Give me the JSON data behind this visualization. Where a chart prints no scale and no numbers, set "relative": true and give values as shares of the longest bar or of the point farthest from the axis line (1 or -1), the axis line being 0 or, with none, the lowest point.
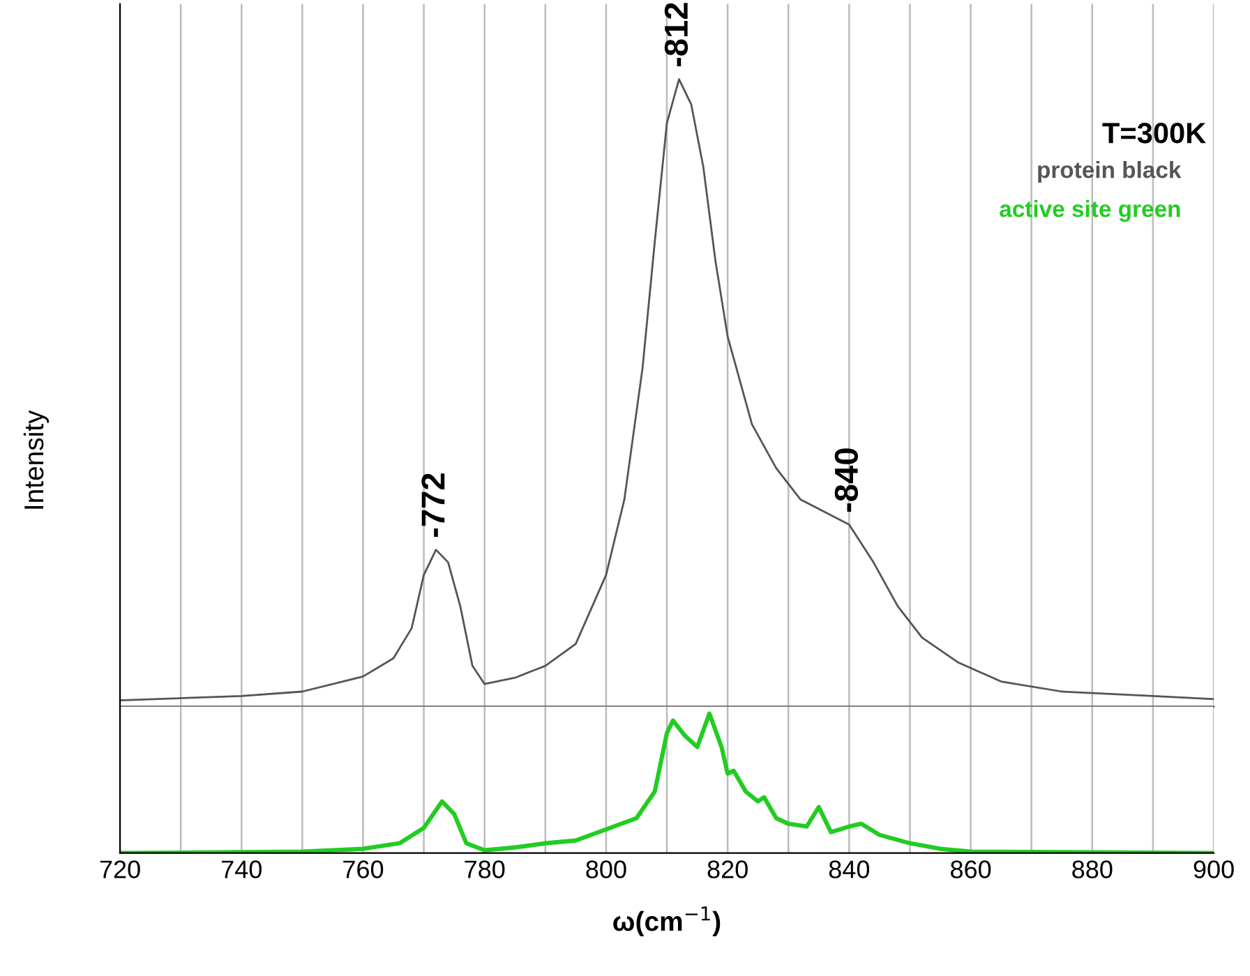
{
  "chart_data": [
    {
      "type": "line",
      "relative": true,
      "ylabel": "Intensity",
      "grid": "x",
      "tick_labels": false,
      "legend": "top right",
      "xlim": [
        720,
        900
      ],
      "xticks": [
        720,
        {
          "value": 730,
          "label": null
        },
        740,
        {
          "value": 750,
          "label": null
        },
        760,
        {
          "value": 770,
          "label": null
        },
        780,
        {
          "value": 790,
          "label": null
        },
        800,
        {
          "value": 810,
          "label": null
        },
        820,
        {
          "value": 830,
          "label": null
        },
        840,
        {
          "value": 850,
          "label": null
        },
        860,
        {
          "value": 870,
          "label": null
        },
        880,
        {
          "value": 890,
          "label": null
        },
        900
      ],
      "annotations": [
        "T=300K",
        {
          "text": "-772",
          "x": 772,
          "y": 0.25
        },
        {
          "text": "-812",
          "x": 812,
          "y": 1.0
        },
        {
          "text": "-840",
          "x": 840,
          "y": 0.29
        }
      ],
      "series": [
        {
          "name": "protein black",
          "color": "#555555",
          "x": [
            720,
            740,
            750,
            760,
            765,
            768,
            770,
            772,
            774,
            776,
            778,
            780,
            785,
            790,
            795,
            800,
            803,
            806,
            808,
            810,
            812,
            814,
            816,
            818,
            820,
            824,
            828,
            832,
            836,
            840,
            844,
            848,
            852,
            858,
            865,
            875,
            890,
            900
          ],
          "values": [
            0.01,
            0.017,
            0.024,
            0.048,
            0.077,
            0.125,
            0.21,
            0.25,
            0.23,
            0.16,
            0.065,
            0.036,
            0.046,
            0.065,
            0.1,
            0.21,
            0.33,
            0.54,
            0.74,
            0.93,
            1.0,
            0.96,
            0.86,
            0.71,
            0.59,
            0.45,
            0.38,
            0.33,
            0.31,
            0.29,
            0.23,
            0.16,
            0.11,
            0.07,
            0.04,
            0.024,
            0.017,
            0.012
          ]
        }
      ]
    },
    {
      "type": "line",
      "relative": true,
      "xlabel": "ω(cm$^{−1}$)",
      "grid": "x",
      "tick_labels": "x",
      "legend": "top right",
      "xlim": [
        720,
        900
      ],
      "xticks": [
        720,
        {
          "value": 730,
          "label": null
        },
        740,
        {
          "value": 750,
          "label": null
        },
        760,
        {
          "value": 770,
          "label": null
        },
        780,
        {
          "value": 790,
          "label": null
        },
        800,
        {
          "value": 810,
          "label": null
        },
        820,
        {
          "value": 830,
          "label": null
        },
        840,
        {
          "value": 850,
          "label": null
        },
        860,
        {
          "value": 870,
          "label": null
        },
        880,
        {
          "value": 890,
          "label": null
        },
        900
      ],
      "series": [
        {
          "name": "active site green",
          "color": "#22cc22",
          "x": [
            720,
            750,
            760,
            766,
            770,
            773,
            775,
            777,
            780,
            785,
            790,
            795,
            800,
            805,
            808,
            810,
            811,
            813,
            815,
            817,
            819,
            820,
            821,
            823,
            825,
            826,
            828,
            830,
            833,
            835,
            837,
            840,
            842,
            845,
            850,
            855,
            860,
            900
          ],
          "values": [
            0,
            0.01,
            0.03,
            0.07,
            0.18,
            0.37,
            0.28,
            0.07,
            0.02,
            0.04,
            0.07,
            0.09,
            0.17,
            0.25,
            0.44,
            0.86,
            0.95,
            0.84,
            0.76,
            1.0,
            0.76,
            0.57,
            0.59,
            0.44,
            0.37,
            0.4,
            0.25,
            0.21,
            0.19,
            0.33,
            0.15,
            0.19,
            0.21,
            0.13,
            0.07,
            0.03,
            0.01,
            0
          ]
        }
      ]
    }
  ]
}
